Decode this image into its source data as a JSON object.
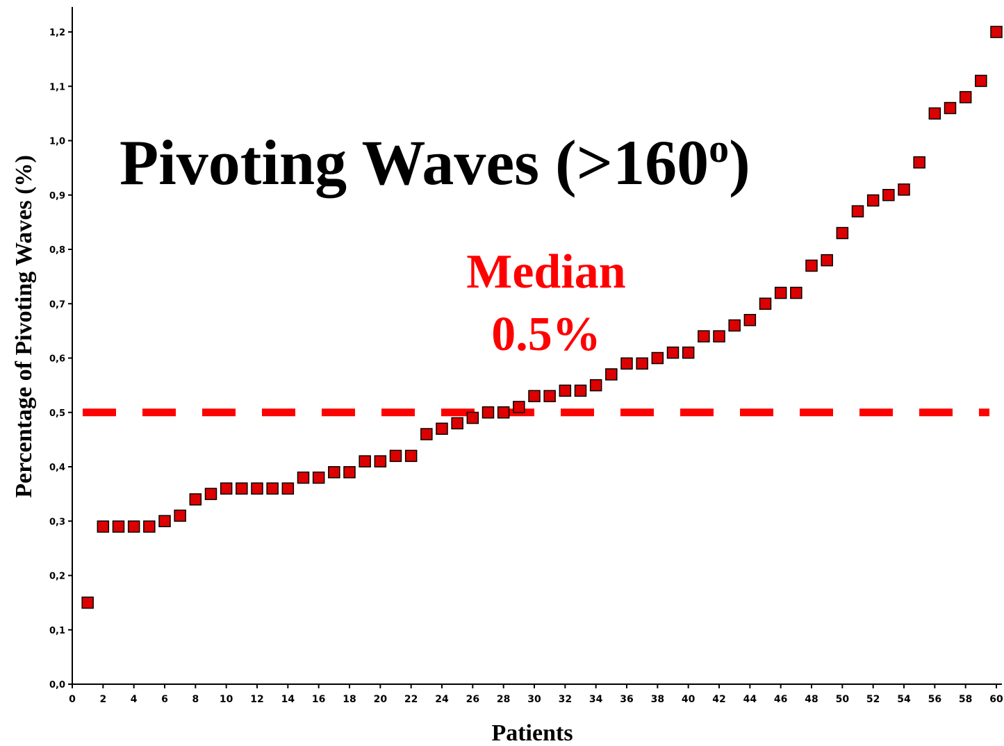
{
  "chart_data": {
    "type": "scatter",
    "title": "Pivoting Waves (>160",
    "title_superscript": "o",
    "title_close": ")",
    "xlabel": "Patients",
    "ylabel": "Percentage of Pivoting Waves (%)",
    "xlim": [
      0,
      60
    ],
    "ylim": [
      0,
      1.2
    ],
    "x_ticks": [
      "0",
      "2",
      "4",
      "6",
      "8",
      "10",
      "12",
      "14",
      "16",
      "18",
      "20",
      "22",
      "24",
      "26",
      "28",
      "30",
      "32",
      "34",
      "36",
      "38",
      "40",
      "42",
      "44",
      "46",
      "48",
      "50",
      "52",
      "54",
      "56",
      "58",
      "60"
    ],
    "y_ticks": [
      "0,0",
      "0,1",
      "0,2",
      "0,3",
      "0,4",
      "0,5",
      "0,6",
      "0,7",
      "0,8",
      "0,9",
      "1,0",
      "1,1",
      "1,2"
    ],
    "grid": false,
    "marker": "square",
    "marker_color": "#dd0000",
    "series": [
      {
        "x": [
          1,
          2,
          3,
          4,
          5,
          6,
          7,
          8,
          9,
          10,
          11,
          12,
          13,
          14,
          15,
          16,
          17,
          18,
          19,
          20,
          21,
          22,
          23,
          24,
          25,
          26,
          27,
          28,
          29,
          30,
          31,
          32,
          33,
          34,
          35,
          36,
          37,
          38,
          39,
          40,
          41,
          42,
          43,
          44,
          45,
          46,
          47,
          48,
          49,
          50,
          51,
          52,
          53,
          54,
          55,
          56,
          57,
          58,
          59,
          60
        ],
        "y": [
          0.15,
          0.29,
          0.29,
          0.29,
          0.29,
          0.3,
          0.31,
          0.34,
          0.35,
          0.36,
          0.36,
          0.36,
          0.36,
          0.36,
          0.38,
          0.38,
          0.39,
          0.39,
          0.41,
          0.41,
          0.42,
          0.42,
          0.46,
          0.47,
          0.48,
          0.49,
          0.5,
          0.5,
          0.51,
          0.53,
          0.53,
          0.54,
          0.54,
          0.55,
          0.57,
          0.59,
          0.59,
          0.6,
          0.61,
          0.61,
          0.64,
          0.64,
          0.66,
          0.67,
          0.7,
          0.72,
          0.72,
          0.77,
          0.78,
          0.83,
          0.87,
          0.89,
          0.9,
          0.91,
          0.96,
          1.05,
          1.06,
          1.08,
          1.11,
          1.2
        ]
      }
    ],
    "reference_line": {
      "y": 0.5,
      "style": "dashed",
      "color": "#ff0000"
    },
    "annotation": {
      "line1": "Median",
      "line2": "0.5%",
      "color": "#ff0000"
    }
  }
}
